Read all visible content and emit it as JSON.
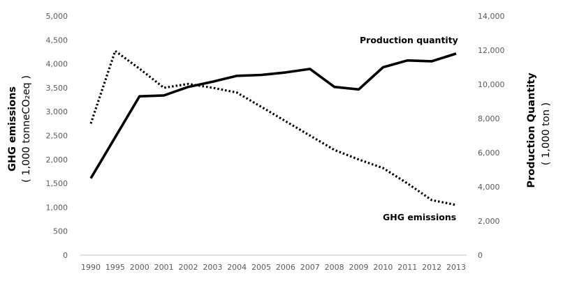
{
  "chart_data": {
    "type": "line",
    "x": [
      "1990",
      "1995",
      "2000",
      "2001",
      "2002",
      "2003",
      "2004",
      "2005",
      "2006",
      "2007",
      "2008",
      "2009",
      "2010",
      "2011",
      "2012",
      "2013"
    ],
    "series": [
      {
        "name": "Production quantity",
        "axis": "right",
        "style": "solid",
        "color": "#000000",
        "values": [
          4500,
          6900,
          9300,
          9350,
          9850,
          10150,
          10500,
          10550,
          10700,
          10900,
          9850,
          9700,
          11000,
          11400,
          11350,
          11800
        ]
      },
      {
        "name": "GHG emissions",
        "axis": "left",
        "style": "dotted",
        "color": "#000000",
        "values": [
          2750,
          4270,
          3900,
          3500,
          3580,
          3500,
          3400,
          3100,
          2800,
          2500,
          2200,
          2000,
          1820,
          1500,
          1150,
          1050
        ]
      }
    ],
    "y_left": {
      "label_line1": "GHG emissions",
      "label_line2": "( 1,000 tonneCO₂eq )",
      "ylim": [
        0,
        5000
      ],
      "ticks": [
        "0",
        "500",
        "1,000",
        "1,500",
        "2,000",
        "2,500",
        "3,000",
        "3,500",
        "4,000",
        "4,500",
        "5,000"
      ]
    },
    "y_right": {
      "label_line1": "Production Quantity",
      "label_line2": "( 1,000 ton )",
      "ylim": [
        0,
        14000
      ],
      "ticks": [
        "0",
        "2,000",
        "4,000",
        "6,000",
        "8,000",
        "10,000",
        "12,000",
        "14,000"
      ]
    },
    "grid": false,
    "legend": "inline labels"
  }
}
